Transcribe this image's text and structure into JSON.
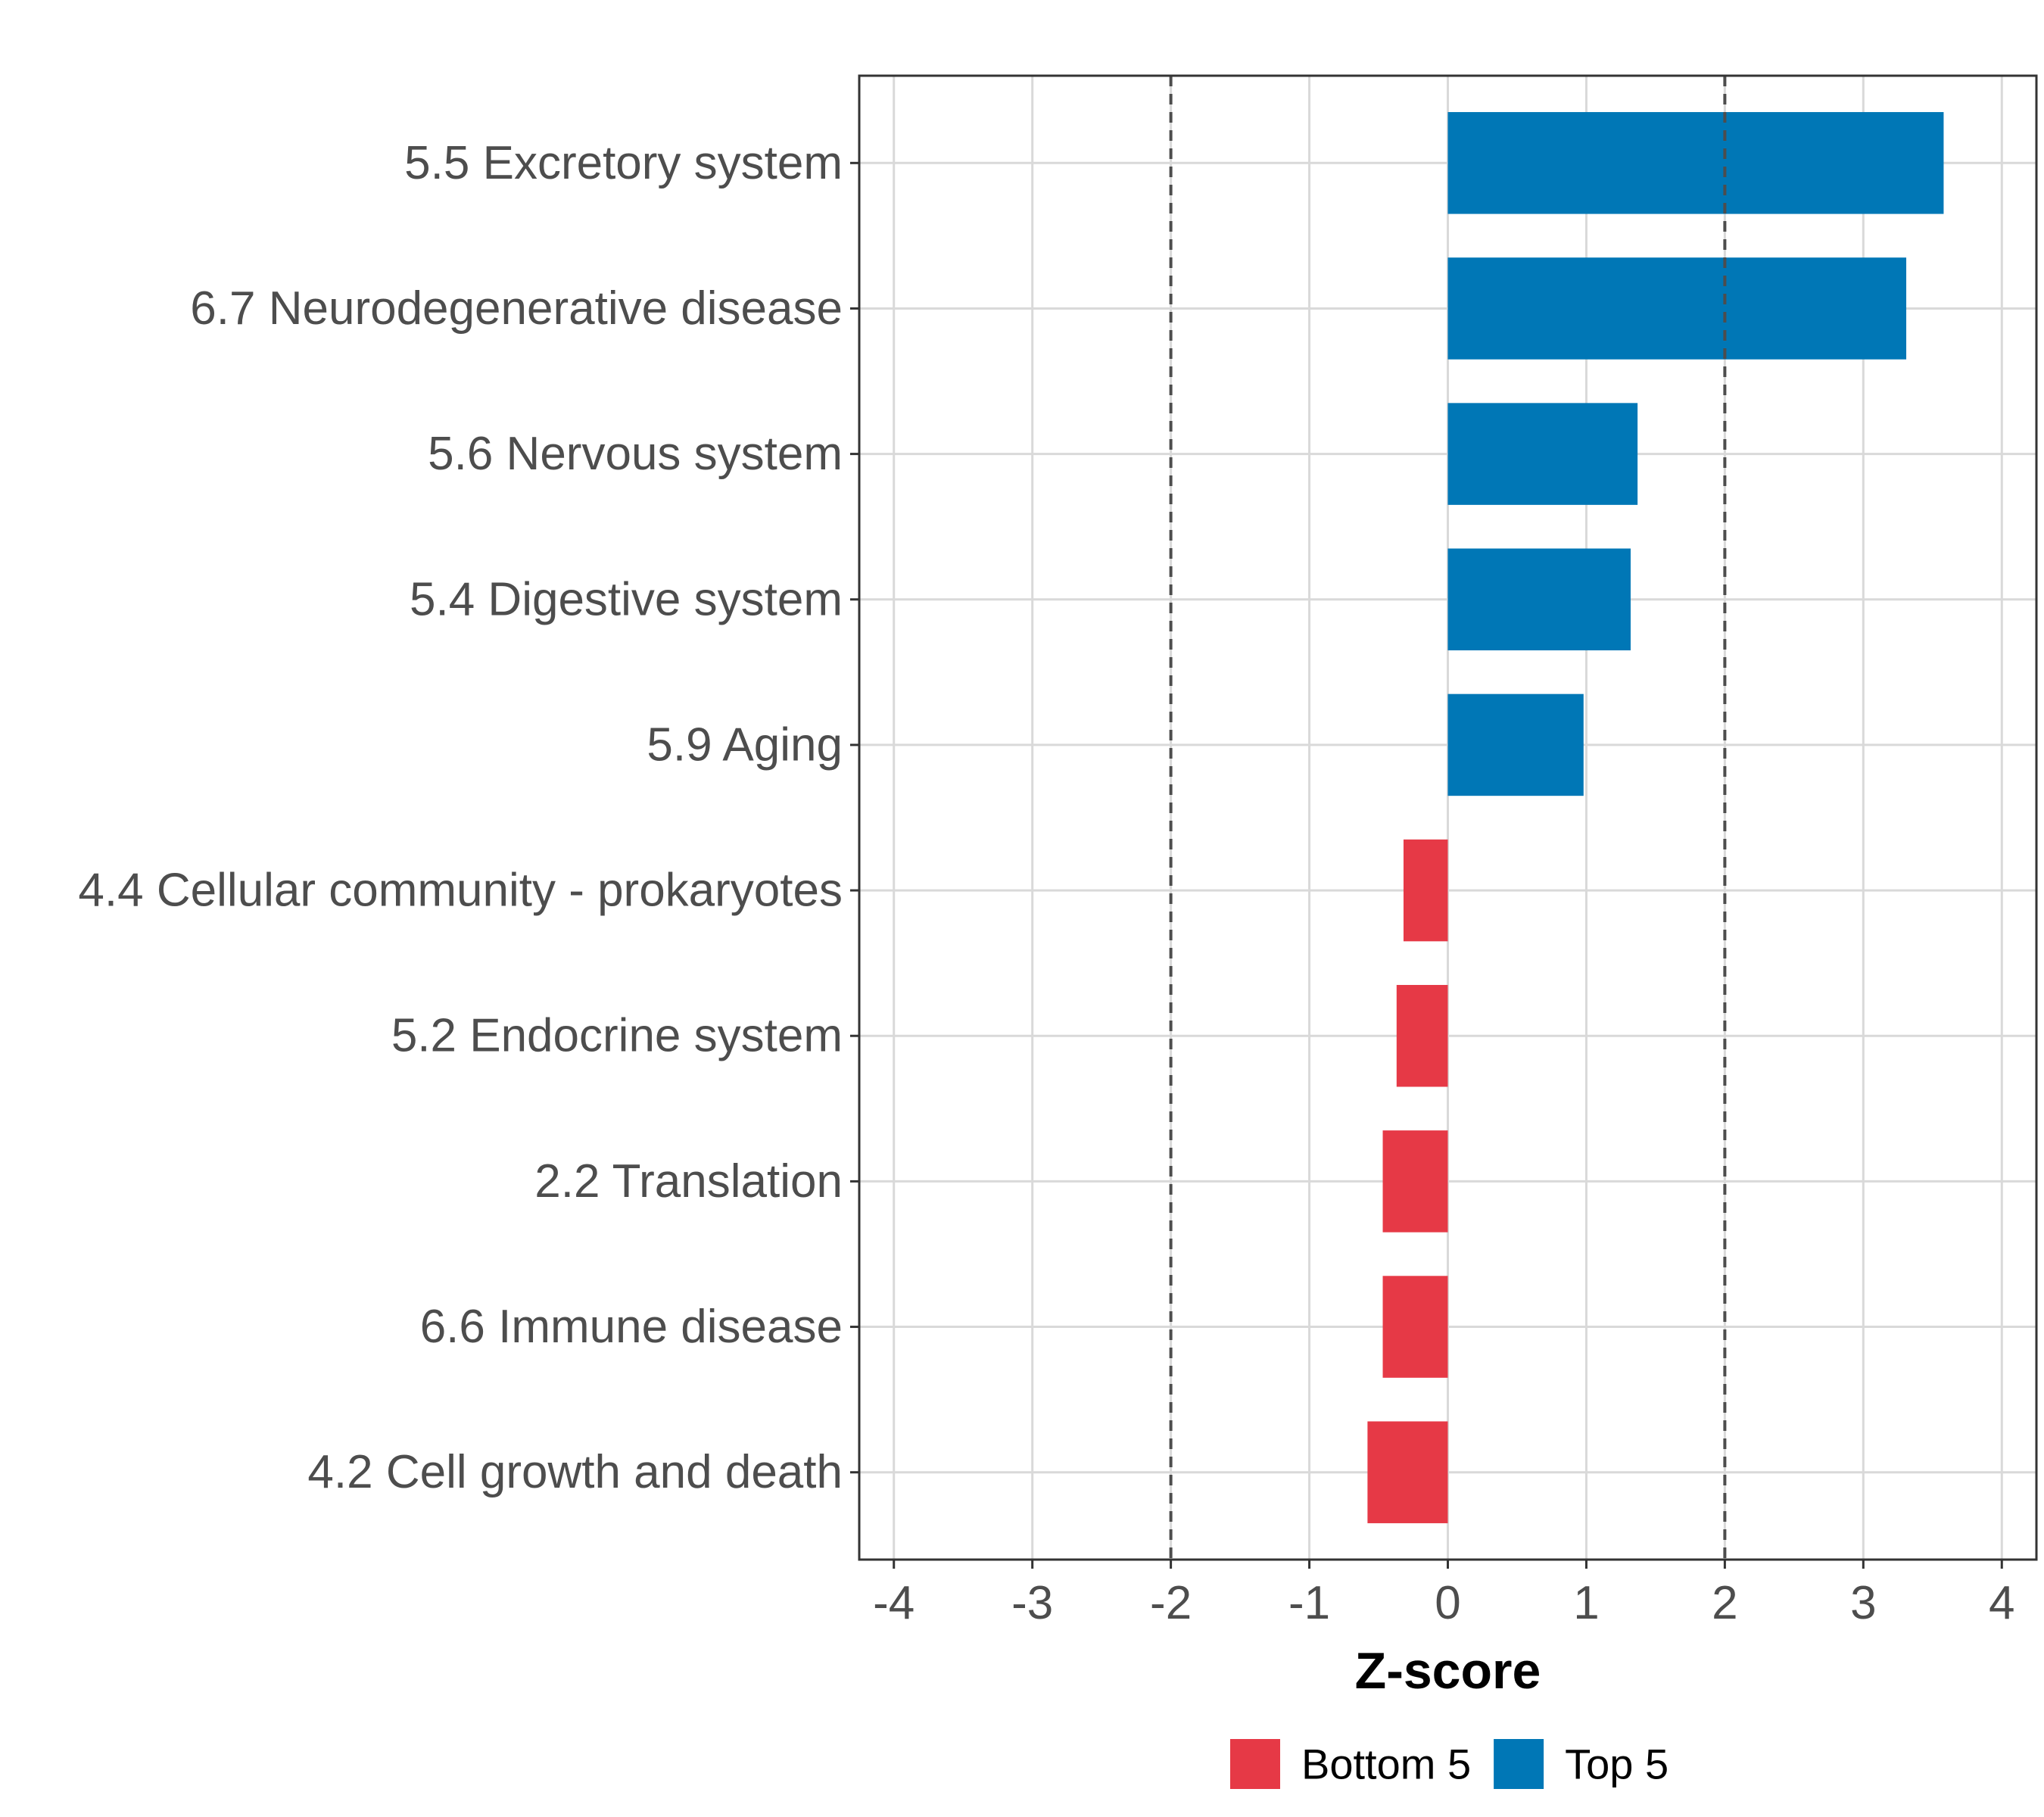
{
  "chart_data": {
    "type": "bar",
    "orientation": "horizontal",
    "title": "",
    "xlabel": "Z-score",
    "ylabel": "",
    "xlim": [
      -4.25,
      4.25
    ],
    "xticks": [
      -4,
      -3,
      -2,
      -1,
      0,
      1,
      2,
      3,
      4
    ],
    "reference_lines": [
      -2,
      2
    ],
    "grid": true,
    "legend_position": "bottom",
    "groups": [
      {
        "name": "Bottom 5",
        "color": "#e63946"
      },
      {
        "name": "Top 5",
        "color": "#0077b6"
      }
    ],
    "categories": [
      "5.5 Excretory system",
      "6.7 Neurodegenerative disease",
      "5.6 Nervous system",
      "5.4 Digestive system",
      "5.9 Aging",
      "4.4 Cellular community - prokaryotes",
      "5.2 Endocrine system",
      "2.2 Translation",
      "6.6 Immune disease",
      "4.2 Cell growth and death"
    ],
    "values": [
      3.58,
      3.31,
      1.37,
      1.32,
      0.98,
      -0.32,
      -0.37,
      -0.47,
      -0.47,
      -0.58
    ],
    "group_of": [
      "Top 5",
      "Top 5",
      "Top 5",
      "Top 5",
      "Top 5",
      "Bottom 5",
      "Bottom 5",
      "Bottom 5",
      "Bottom 5",
      "Bottom 5"
    ]
  }
}
